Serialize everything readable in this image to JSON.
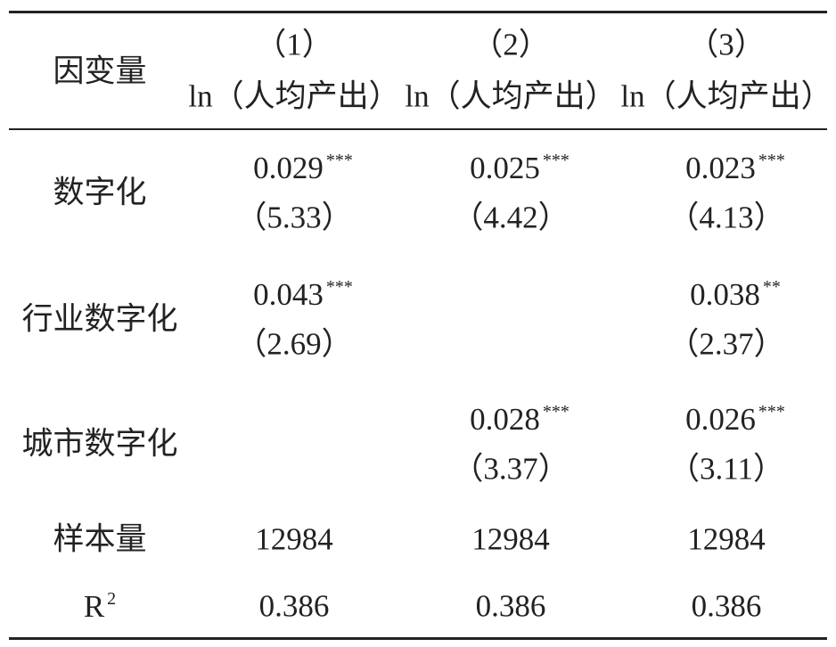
{
  "table": {
    "header": {
      "label": "因变量",
      "columns": [
        {
          "number": "（1）",
          "dependent": "ln（人均产出）"
        },
        {
          "number": "（2）",
          "dependent": "ln（人均产出）"
        },
        {
          "number": "（3）",
          "dependent": "ln（人均产出）"
        }
      ]
    },
    "rows": [
      {
        "name": "数字化",
        "cells": [
          {
            "coef": 0.029,
            "stars": "***",
            "t": "（5.33）"
          },
          {
            "coef": 0.025,
            "stars": "***",
            "t": "（4.42）"
          },
          {
            "coef": 0.023,
            "stars": "***",
            "t": "（4.13）"
          }
        ]
      },
      {
        "name": "行业数字化",
        "cells": [
          {
            "coef": 0.043,
            "stars": "***",
            "t": "（2.69）"
          },
          null,
          {
            "coef": 0.038,
            "stars": "**",
            "t": "（2.37）"
          }
        ]
      },
      {
        "name": "城市数字化",
        "cells": [
          null,
          {
            "coef": 0.028,
            "stars": "***",
            "t": "（3.37）"
          },
          {
            "coef": 0.026,
            "stars": "***",
            "t": "（3.11）"
          }
        ]
      }
    ],
    "stats": [
      {
        "name": "样本量",
        "values": [
          12984,
          12984,
          12984
        ]
      },
      {
        "name": "R",
        "name_sup": "2",
        "values": [
          0.386,
          0.386,
          0.386
        ]
      }
    ]
  }
}
